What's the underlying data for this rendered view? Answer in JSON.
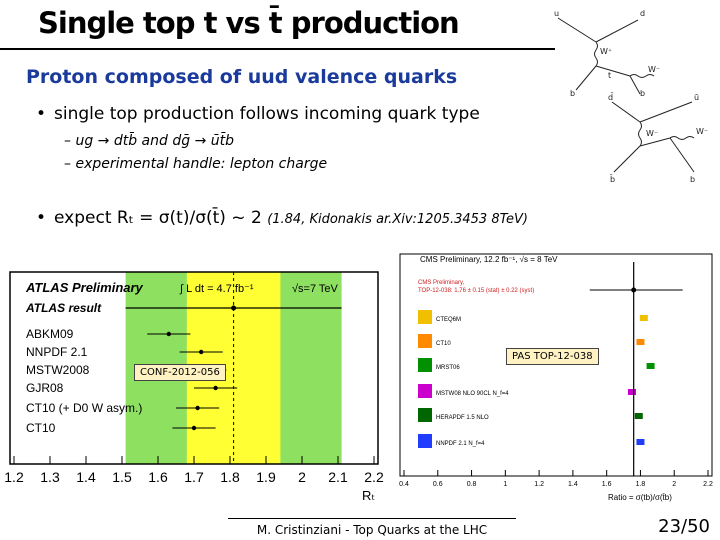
{
  "slide": {
    "title": "Single top t vs t̄ production",
    "subtitle": "Proton composed of uud valence quarks",
    "bullet1": "single top production follows incoming quark type",
    "sub1": "– ug → dtb̄ and dḡ → ūt̄b",
    "sub2": "– experimental handle: lepton charge",
    "bullet2_main": "expect Rₜ = σ(t)/σ(t̄) ~ 2",
    "bullet2_ref": "(1.84, Kidonakis ar.Xiv:1205.3453 8TeV)",
    "bullet_char": "•"
  },
  "feynman": {
    "top": {
      "u": "u",
      "d": "d",
      "W": "W⁺",
      "Wm": "W⁻",
      "t": "t",
      "b": "b"
    },
    "bottom": {
      "d": "d̄",
      "u": "ū",
      "W": "W⁻",
      "Wp": "W⁻",
      "t": "t̄",
      "b": "b̄",
      "b2": "b"
    }
  },
  "chart_data": [
    {
      "type": "scatter",
      "title": "ATLAS Preliminary",
      "header_lumi": "∫ L dt = 4.7 fb⁻¹",
      "header_energy": "√s=7 TeV",
      "result_label": "ATLAS result",
      "categories": [
        "ABKM09",
        "NNPDF 2.1",
        "MSTW2008",
        "GJR08",
        "CT10 (+ D0 W asym.)",
        "CT10"
      ],
      "values": [
        1.63,
        1.72,
        1.73,
        1.76,
        1.71,
        1.7
      ],
      "result": {
        "value": 1.81,
        "stat_low": 1.68,
        "stat_high": 1.94,
        "total_low": 1.51,
        "total_high": 2.11
      },
      "xlim": [
        1.2,
        2.2
      ],
      "xticks": [
        "1.2",
        "1.3",
        "1.4",
        "1.5",
        "1.6",
        "1.7",
        "1.8",
        "1.9",
        "2",
        "2.1",
        "2.2"
      ],
      "xlabel": "Rₜ",
      "colors": {
        "total": "#8ee060",
        "stat": "#ffff33",
        "line": "#000000"
      },
      "tag": "CONF-2012-056"
    },
    {
      "type": "bar",
      "title": "CMS Preliminary, 12.2 fb⁻¹, √s = 8 TeV",
      "measurement_lines": [
        "CMS Preliminary,",
        "TOP-12-038: 1.76 ± 0.15 (stat) ± 0.22 (syst)"
      ],
      "categories": [
        "CTEQ6M",
        "CT10",
        "MRST06",
        "MSTW08 NLO 90CL N_f=4",
        "HERAPDF 1.5 NLO",
        "NNPDF 2.1 N_f=4"
      ],
      "values": [
        1.82,
        1.8,
        1.86,
        1.75,
        1.79,
        1.8
      ],
      "swatch_colors": [
        "#f0c000",
        "#ff8a00",
        "#009000",
        "#cc00cc",
        "#006600",
        "#1f3cff"
      ],
      "measurement": 1.76,
      "xlim": [
        0.4,
        2.2
      ],
      "xticks": [
        "0.4",
        "0.6",
        "0.8",
        "1",
        "1.2",
        "1.4",
        "1.6",
        "1.8",
        "2",
        "2.2"
      ],
      "xlabel": "Ratio = σ(tb)/σ(t̄b)",
      "tag": "PAS TOP-12-038"
    }
  ],
  "footer": {
    "text": "M. Cristinziani - Top Quarks at the LHC",
    "page": "23/50"
  }
}
